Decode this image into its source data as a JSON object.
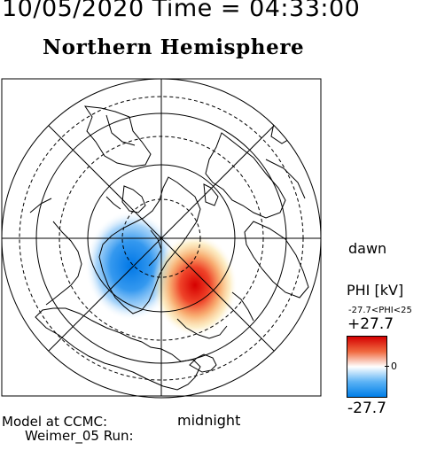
{
  "header": {
    "timestamp": "10/05/2020 Time = 04:33:00",
    "hemisphere": "Northern Hemisphere"
  },
  "map": {
    "projection": "polar-stereographic",
    "pattern": "two-cell electric potential",
    "orientation": {
      "right": "dawn",
      "bottom": "midnight"
    },
    "cells": [
      {
        "sign": "negative",
        "sector": "dusk-midnight (left)"
      },
      {
        "sign": "positive",
        "sector": "dawn-midnight (lower right)"
      }
    ]
  },
  "labels": {
    "dawn": "dawn",
    "midnight": "midnight",
    "model_line1": "Model at CCMC:",
    "model_line2": "Weimer_05 Run:"
  },
  "colorbar": {
    "title": "PHI [kV]",
    "range_text": "-27.7<PHI<25",
    "max_label": "+27.7",
    "zero_label": "0",
    "min_label": "-27.7",
    "max_value": 27.7,
    "min_value": -27.7,
    "colors": {
      "positive": "#d40000",
      "zero": "#ffffff",
      "negative": "#007ee8"
    }
  }
}
